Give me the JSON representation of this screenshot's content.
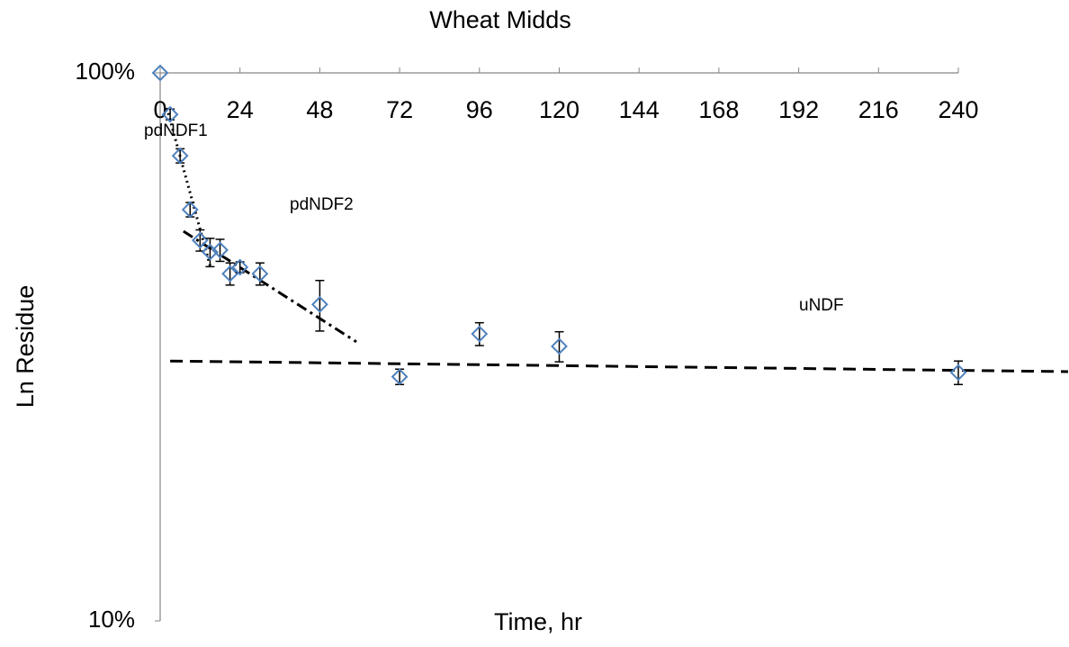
{
  "chart_data": {
    "type": "scatter",
    "title": "Wheat  Midds",
    "x_label": "Time, hr",
    "y_label": "Ln Residue",
    "log_y": true,
    "xlim": [
      0,
      240
    ],
    "ylim": [
      10,
      100
    ],
    "xticks": [
      0,
      24,
      48,
      72,
      96,
      120,
      144,
      168,
      192,
      216,
      240
    ],
    "yticks": [
      {
        "value": 10,
        "label": "10%"
      },
      {
        "value": 100,
        "label": "100%"
      }
    ],
    "series": [
      {
        "color": "#4f81bd",
        "x": [
          0,
          3,
          6,
          9,
          12,
          15,
          18,
          21,
          24,
          30,
          48,
          72,
          96,
          120,
          240
        ],
        "values": [
          100,
          84,
          70.6,
          56.3,
          49.5,
          47.1,
          47.5,
          43.0,
          44.2,
          43.0,
          37.8,
          27.9,
          33.4,
          31.7,
          28.4
        ],
        "errors": [
          null,
          1.9,
          2.1,
          1.7,
          2.2,
          2.8,
          2.2,
          2.0,
          1.0,
          2.0,
          4.0,
          0.9,
          1.6,
          2.0,
          1.4
        ]
      }
    ],
    "trendlines": [
      {
        "name": "pdNDF1",
        "style": "dotted",
        "x": [
          2,
          15
        ],
        "values": [
          86.3,
          44.5
        ]
      },
      {
        "name": "pdNDF2",
        "style": "dashdot",
        "x": [
          7,
          59
        ],
        "values": [
          51.4,
          32.3
        ]
      },
      {
        "name": "uNDF",
        "style": "dashed",
        "x": [
          3,
          273
        ],
        "values": [
          29.8,
          28.5
        ]
      }
    ]
  }
}
